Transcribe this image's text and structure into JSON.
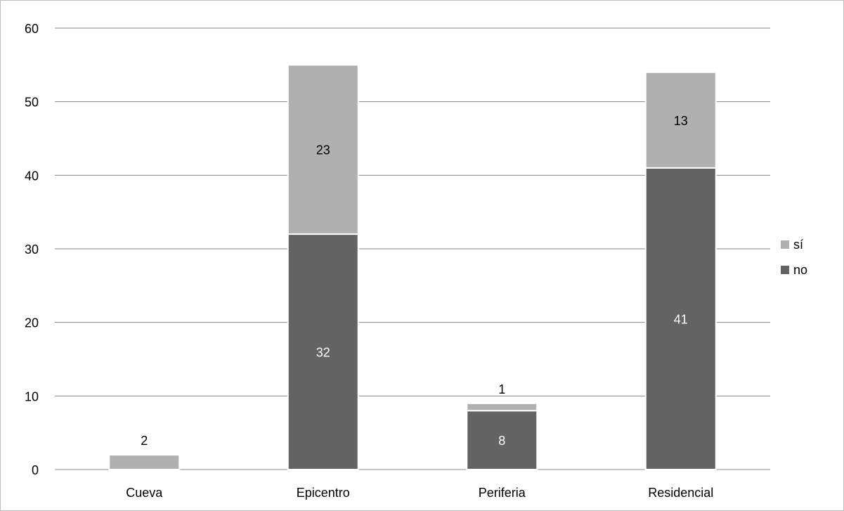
{
  "chart_data": {
    "type": "bar",
    "stacked": true,
    "categories": [
      "Cueva",
      "Epicentro",
      "Periferia",
      "Residencial"
    ],
    "series": [
      {
        "name": "no",
        "color": "#636363",
        "values": [
          0,
          32,
          8,
          41
        ],
        "labels": [
          "",
          "32",
          "8",
          "41"
        ]
      },
      {
        "name": "sí",
        "color": "#b0b0b0",
        "values": [
          2,
          23,
          1,
          13
        ],
        "labels": [
          "2",
          "23",
          "1",
          "13"
        ]
      }
    ],
    "legend_order": [
      "sí",
      "no"
    ],
    "legend_position": "right",
    "ylim": [
      0,
      60
    ],
    "yticks": [
      "0",
      "10",
      "20",
      "30",
      "40",
      "50",
      "60"
    ],
    "title": "",
    "xlabel": "",
    "ylabel": "",
    "grid": true
  }
}
